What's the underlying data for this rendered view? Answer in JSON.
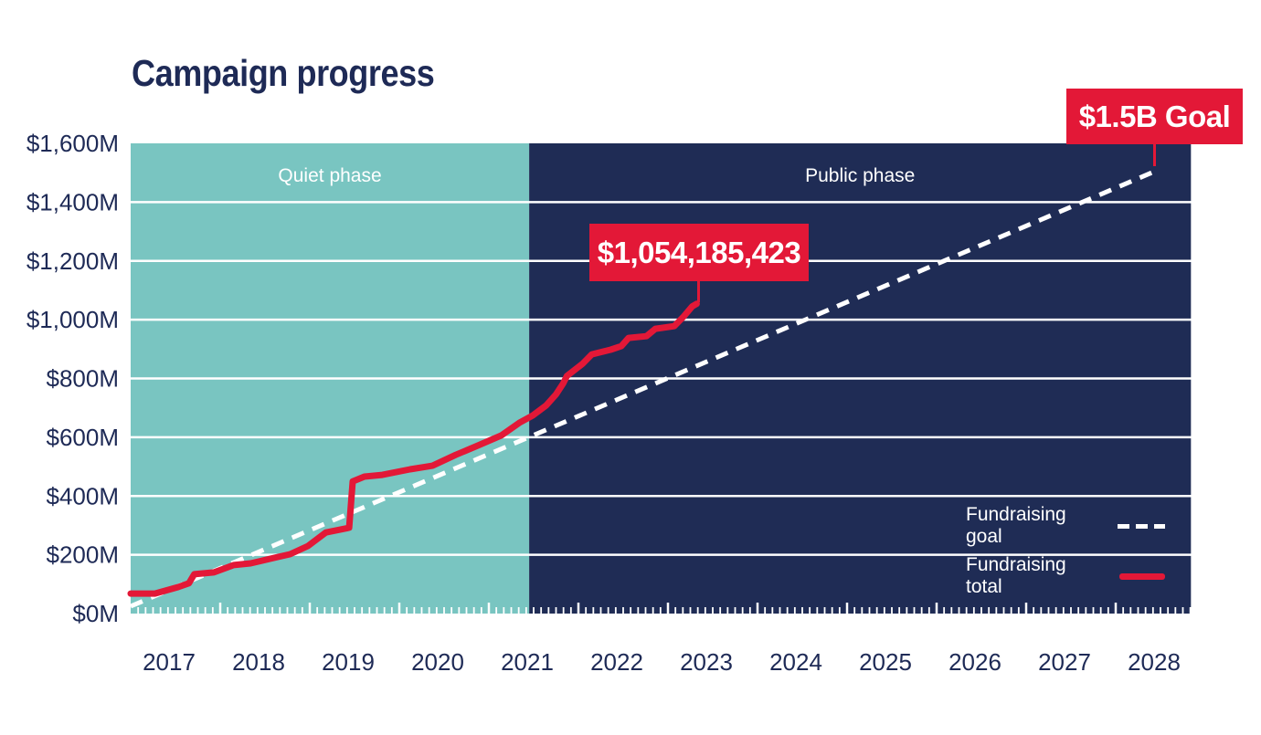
{
  "title": "Campaign progress",
  "colors": {
    "navy": "#1F2C55",
    "teal": "#79C5C1",
    "red": "#E31837",
    "axis_text": "#1E2A56",
    "grid": "#FFFFFF",
    "phase_label_text": "#FFFFFF"
  },
  "chart_data": {
    "type": "line",
    "title": "Campaign progress",
    "x_axis": {
      "unit": "year",
      "tick_labels": [
        "2017",
        "2018",
        "2019",
        "2020",
        "2021",
        "2022",
        "2023",
        "2024",
        "2025",
        "2026",
        "2027",
        "2028"
      ],
      "tick_years": [
        2017,
        2018,
        2019,
        2020,
        2021,
        2022,
        2023,
        2024,
        2025,
        2026,
        2027,
        2028
      ],
      "minor_ticks": "monthly",
      "range": [
        2017.0,
        2028.84
      ]
    },
    "y_axis": {
      "unit": "millions USD",
      "max": 1600,
      "min": 0,
      "ticks": [
        {
          "value": 1600,
          "label": "$1,600M"
        },
        {
          "value": 1400,
          "label": "$1,400M"
        },
        {
          "value": 1200,
          "label": "$1,200M"
        },
        {
          "value": 1000,
          "label": "$1,000M"
        },
        {
          "value": 800,
          "label": "$800M"
        },
        {
          "value": 600,
          "label": "$600M"
        },
        {
          "value": 400,
          "label": "$400M"
        },
        {
          "value": 200,
          "label": "$200M"
        },
        {
          "value": 0,
          "label": "$0M"
        }
      ],
      "grid": "horizontal white lines at each 200M"
    },
    "phases": [
      {
        "label": "Quiet phase",
        "start": 2017.0,
        "end": 2021.45,
        "color": "#79C5C1"
      },
      {
        "label": "Public phase",
        "start": 2021.45,
        "end": 2028.84,
        "color": "#1F2C55"
      }
    ],
    "series": [
      {
        "name": "Fundraising goal",
        "style": "dashed",
        "color": "#FFFFFF",
        "points": [
          [
            2017.0,
            25
          ],
          [
            2028.4,
            1500
          ]
        ]
      },
      {
        "name": "Fundraising total",
        "style": "solid",
        "color": "#E31837",
        "points": [
          [
            2017.0,
            68
          ],
          [
            2017.27,
            68
          ],
          [
            2017.53,
            90
          ],
          [
            2017.65,
            103
          ],
          [
            2017.71,
            134
          ],
          [
            2017.93,
            140
          ],
          [
            2018.15,
            165
          ],
          [
            2018.34,
            171
          ],
          [
            2018.65,
            193
          ],
          [
            2018.78,
            202
          ],
          [
            2018.98,
            230
          ],
          [
            2019.18,
            276
          ],
          [
            2019.44,
            292
          ],
          [
            2019.48,
            450
          ],
          [
            2019.61,
            466
          ],
          [
            2019.81,
            472
          ],
          [
            2020.12,
            491
          ],
          [
            2020.37,
            503
          ],
          [
            2020.63,
            540
          ],
          [
            2020.88,
            572
          ],
          [
            2021.14,
            606
          ],
          [
            2021.34,
            649
          ],
          [
            2021.49,
            674
          ],
          [
            2021.64,
            708
          ],
          [
            2021.75,
            746
          ],
          [
            2021.83,
            783
          ],
          [
            2021.87,
            808
          ],
          [
            2022.05,
            851
          ],
          [
            2022.15,
            882
          ],
          [
            2022.36,
            898
          ],
          [
            2022.48,
            910
          ],
          [
            2022.56,
            938
          ],
          [
            2022.76,
            944
          ],
          [
            2022.86,
            969
          ],
          [
            2023.07,
            978
          ],
          [
            2023.17,
            1009
          ],
          [
            2023.27,
            1045
          ],
          [
            2023.32,
            1054
          ]
        ]
      }
    ],
    "annotations": [
      {
        "label": "$1,054,185,423",
        "anchor_year": 2023.32,
        "anchor_value": 1054.185423
      },
      {
        "label": "$1.5B Goal",
        "anchor_year": 2028.4,
        "anchor_value": 1500
      }
    ],
    "legend": {
      "position": "bottom-right-inside-plot",
      "entries": [
        {
          "label": "Fundraising goal",
          "style": "dashed",
          "color": "#FFFFFF"
        },
        {
          "label": "Fundraising total",
          "style": "solid",
          "color": "#E31837"
        }
      ]
    }
  }
}
